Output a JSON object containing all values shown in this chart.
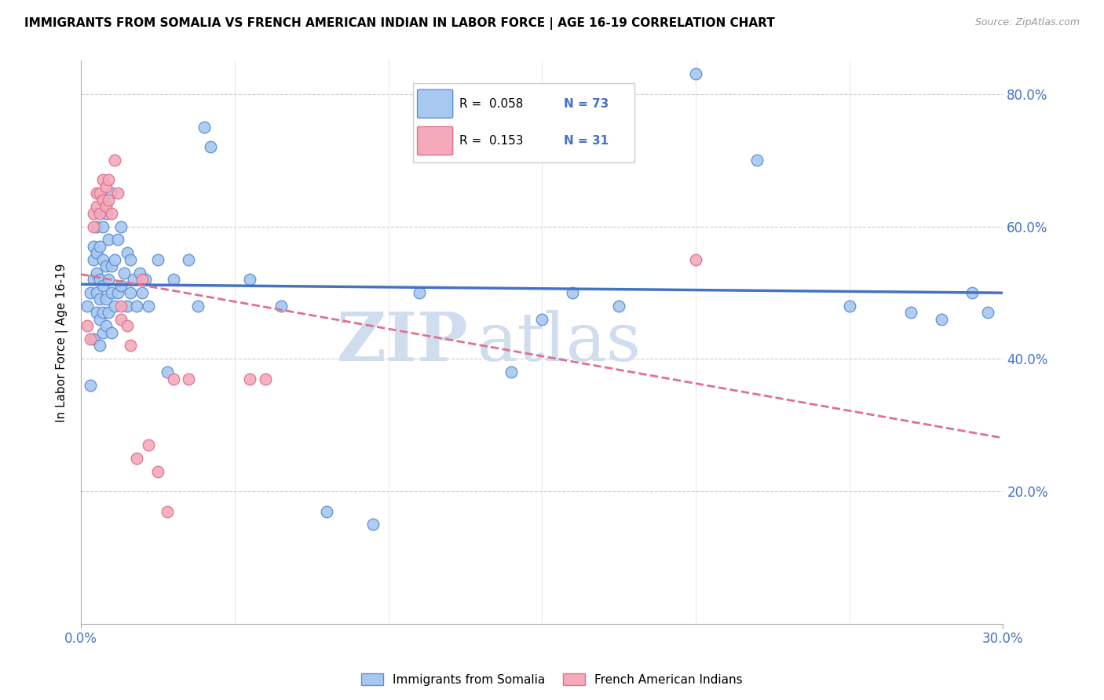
{
  "title": "IMMIGRANTS FROM SOMALIA VS FRENCH AMERICAN INDIAN IN LABOR FORCE | AGE 16-19 CORRELATION CHART",
  "source": "Source: ZipAtlas.com",
  "ylabel": "In Labor Force | Age 16-19",
  "xlim": [
    0.0,
    0.3
  ],
  "ylim": [
    0.0,
    0.85
  ],
  "ytick_values": [
    0.2,
    0.4,
    0.6,
    0.8
  ],
  "color_somalia": "#A8C8F0",
  "color_french": "#F4AABB",
  "color_somalia_edge": "#5B8FD4",
  "color_french_edge": "#E07090",
  "color_somalia_line": "#4472C4",
  "color_french_line": "#E07090",
  "watermark_zip": "ZIP",
  "watermark_atlas": "atlas",
  "watermark_color": "#D0DDEF",
  "legend_r1": "R =  0.058",
  "legend_n1": "N = 73",
  "legend_r2": "R =  0.153",
  "legend_n2": "N = 31",
  "somalia_x": [
    0.002,
    0.003,
    0.003,
    0.004,
    0.004,
    0.004,
    0.004,
    0.005,
    0.005,
    0.005,
    0.005,
    0.005,
    0.006,
    0.006,
    0.006,
    0.006,
    0.006,
    0.007,
    0.007,
    0.007,
    0.007,
    0.007,
    0.008,
    0.008,
    0.008,
    0.008,
    0.009,
    0.009,
    0.009,
    0.01,
    0.01,
    0.01,
    0.01,
    0.011,
    0.011,
    0.012,
    0.012,
    0.013,
    0.013,
    0.014,
    0.015,
    0.015,
    0.016,
    0.016,
    0.017,
    0.018,
    0.019,
    0.02,
    0.021,
    0.022,
    0.025,
    0.028,
    0.03,
    0.035,
    0.038,
    0.04,
    0.042,
    0.055,
    0.065,
    0.08,
    0.095,
    0.11,
    0.14,
    0.15,
    0.16,
    0.175,
    0.2,
    0.22,
    0.25,
    0.27,
    0.28,
    0.29,
    0.295
  ],
  "somalia_y": [
    0.48,
    0.36,
    0.5,
    0.43,
    0.52,
    0.55,
    0.57,
    0.47,
    0.5,
    0.53,
    0.56,
    0.6,
    0.42,
    0.46,
    0.49,
    0.52,
    0.57,
    0.44,
    0.47,
    0.51,
    0.55,
    0.6,
    0.45,
    0.49,
    0.54,
    0.62,
    0.47,
    0.52,
    0.58,
    0.44,
    0.5,
    0.54,
    0.65,
    0.48,
    0.55,
    0.5,
    0.58,
    0.51,
    0.6,
    0.53,
    0.48,
    0.56,
    0.5,
    0.55,
    0.52,
    0.48,
    0.53,
    0.5,
    0.52,
    0.48,
    0.55,
    0.38,
    0.52,
    0.55,
    0.48,
    0.75,
    0.72,
    0.52,
    0.48,
    0.17,
    0.15,
    0.5,
    0.38,
    0.46,
    0.5,
    0.48,
    0.83,
    0.7,
    0.48,
    0.47,
    0.46,
    0.5,
    0.47
  ],
  "french_x": [
    0.002,
    0.003,
    0.004,
    0.004,
    0.005,
    0.005,
    0.006,
    0.006,
    0.007,
    0.007,
    0.008,
    0.008,
    0.009,
    0.009,
    0.01,
    0.011,
    0.012,
    0.013,
    0.013,
    0.015,
    0.016,
    0.018,
    0.02,
    0.022,
    0.025,
    0.028,
    0.03,
    0.035,
    0.055,
    0.06,
    0.2
  ],
  "french_y": [
    0.45,
    0.43,
    0.62,
    0.6,
    0.65,
    0.63,
    0.65,
    0.62,
    0.67,
    0.64,
    0.66,
    0.63,
    0.67,
    0.64,
    0.62,
    0.7,
    0.65,
    0.48,
    0.46,
    0.45,
    0.42,
    0.25,
    0.52,
    0.27,
    0.23,
    0.17,
    0.37,
    0.37,
    0.37,
    0.37,
    0.55
  ]
}
